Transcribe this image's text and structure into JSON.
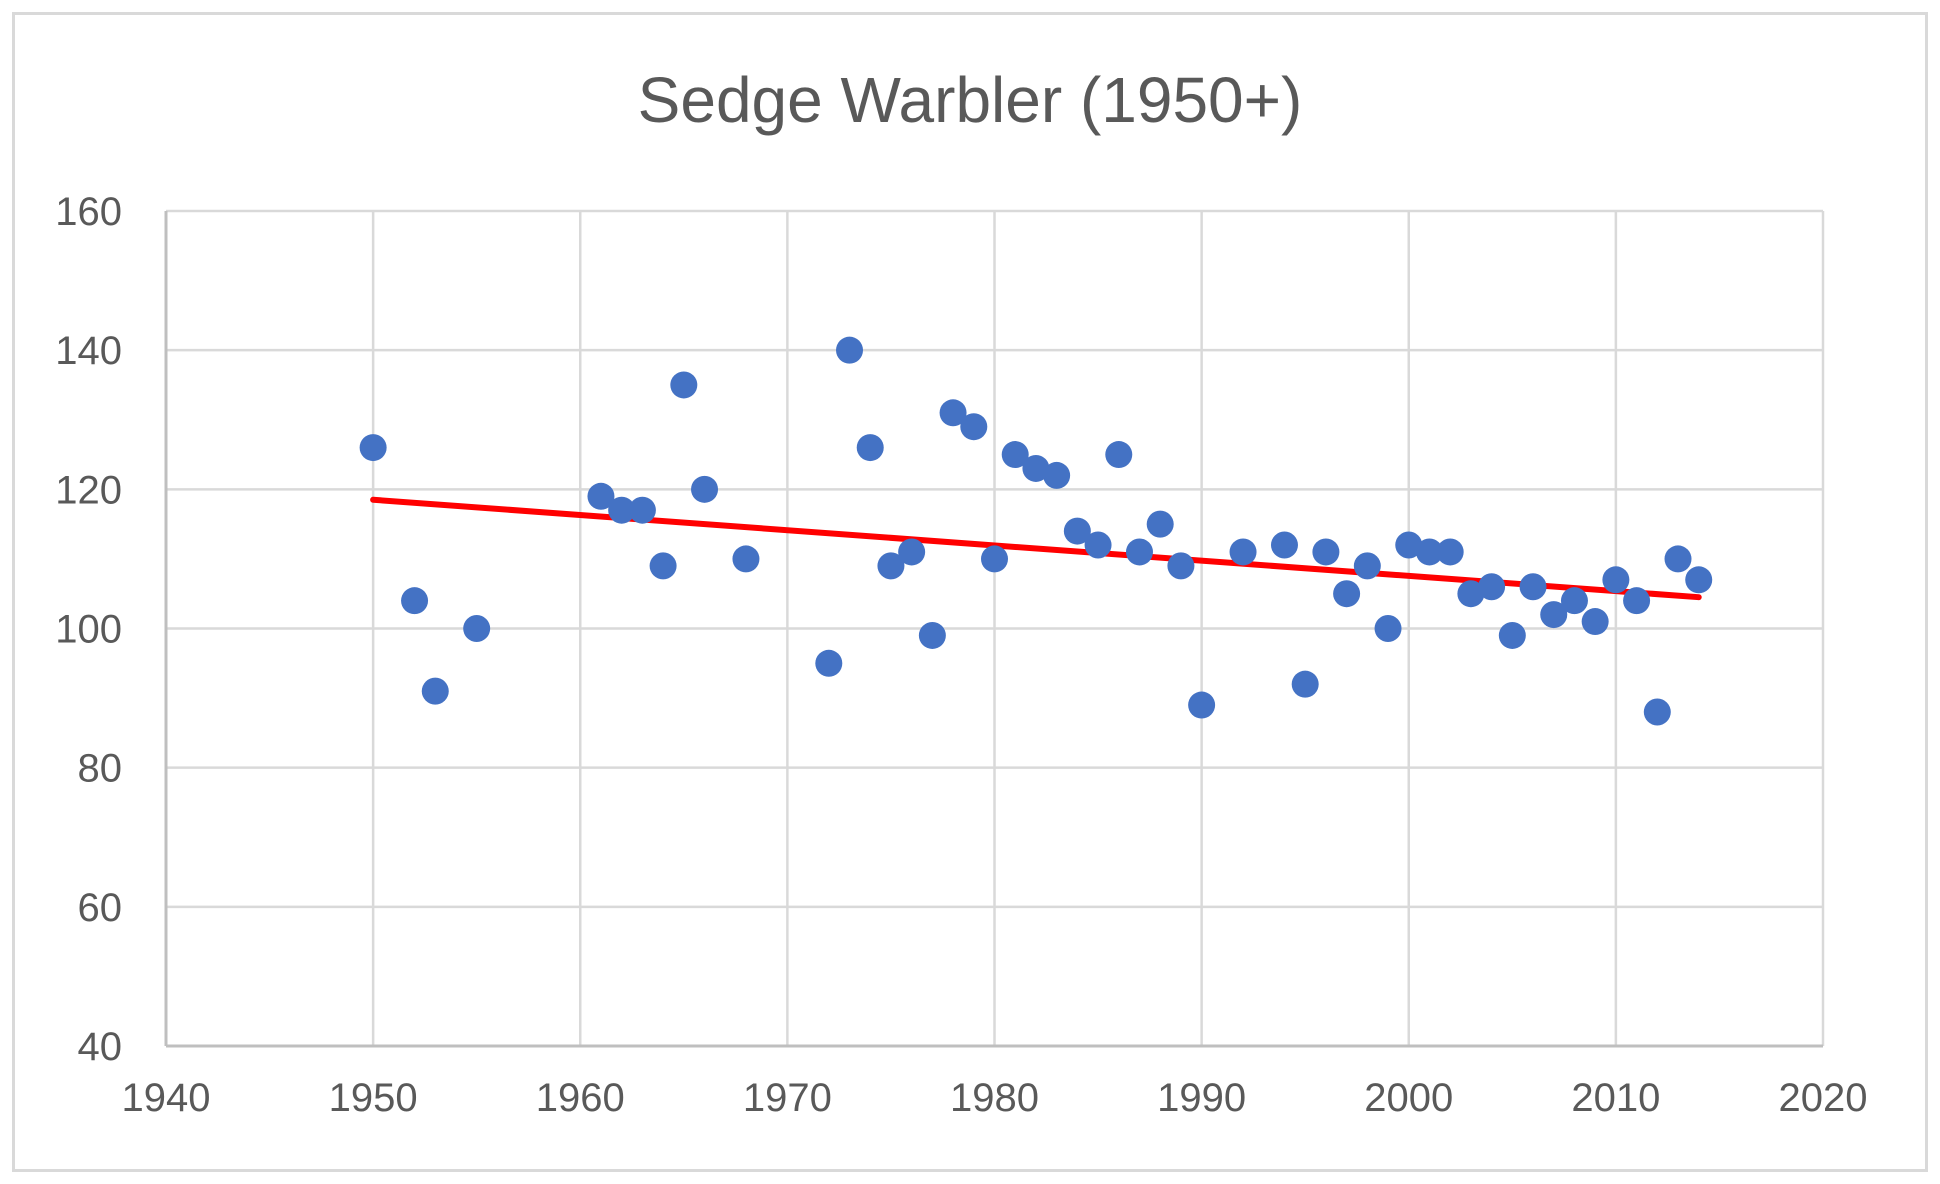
{
  "chart_data": {
    "type": "scatter",
    "title": "Sedge Warbler (1950+)",
    "xlabel": "",
    "ylabel": "",
    "xlim": [
      1940,
      2020
    ],
    "ylim": [
      40,
      160
    ],
    "xticks": [
      1940,
      1950,
      1960,
      1970,
      1980,
      1990,
      2000,
      2010,
      2020
    ],
    "yticks": [
      40,
      60,
      80,
      100,
      120,
      140,
      160
    ],
    "grid": true,
    "legend": "none",
    "point_color": "#4472c4",
    "trend_color": "#ff0000",
    "series": [
      {
        "name": "Sedge Warbler",
        "points": [
          [
            1950,
            126
          ],
          [
            1952,
            104
          ],
          [
            1953,
            91
          ],
          [
            1955,
            100
          ],
          [
            1961,
            119
          ],
          [
            1962,
            117
          ],
          [
            1963,
            117
          ],
          [
            1964,
            109
          ],
          [
            1965,
            135
          ],
          [
            1966,
            120
          ],
          [
            1968,
            110
          ],
          [
            1972,
            95
          ],
          [
            1973,
            140
          ],
          [
            1974,
            126
          ],
          [
            1975,
            109
          ],
          [
            1976,
            111
          ],
          [
            1977,
            99
          ],
          [
            1978,
            131
          ],
          [
            1979,
            129
          ],
          [
            1980,
            110
          ],
          [
            1981,
            125
          ],
          [
            1982,
            123
          ],
          [
            1983,
            122
          ],
          [
            1984,
            114
          ],
          [
            1985,
            112
          ],
          [
            1986,
            125
          ],
          [
            1987,
            111
          ],
          [
            1988,
            115
          ],
          [
            1989,
            109
          ],
          [
            1990,
            89
          ],
          [
            1992,
            111
          ],
          [
            1994,
            112
          ],
          [
            1995,
            92
          ],
          [
            1996,
            111
          ],
          [
            1997,
            105
          ],
          [
            1998,
            109
          ],
          [
            1999,
            100
          ],
          [
            2000,
            112
          ],
          [
            2001,
            111
          ],
          [
            2002,
            111
          ],
          [
            2003,
            105
          ],
          [
            2004,
            106
          ],
          [
            2005,
            99
          ],
          [
            2006,
            106
          ],
          [
            2007,
            102
          ],
          [
            2008,
            104
          ],
          [
            2009,
            101
          ],
          [
            2010,
            107
          ],
          [
            2011,
            104
          ],
          [
            2012,
            88
          ],
          [
            2013,
            110
          ],
          [
            2014,
            107
          ]
        ]
      }
    ],
    "trendline": {
      "name": "Linear trend",
      "x": [
        1950,
        2014
      ],
      "y": [
        118.5,
        104.5
      ]
    }
  }
}
